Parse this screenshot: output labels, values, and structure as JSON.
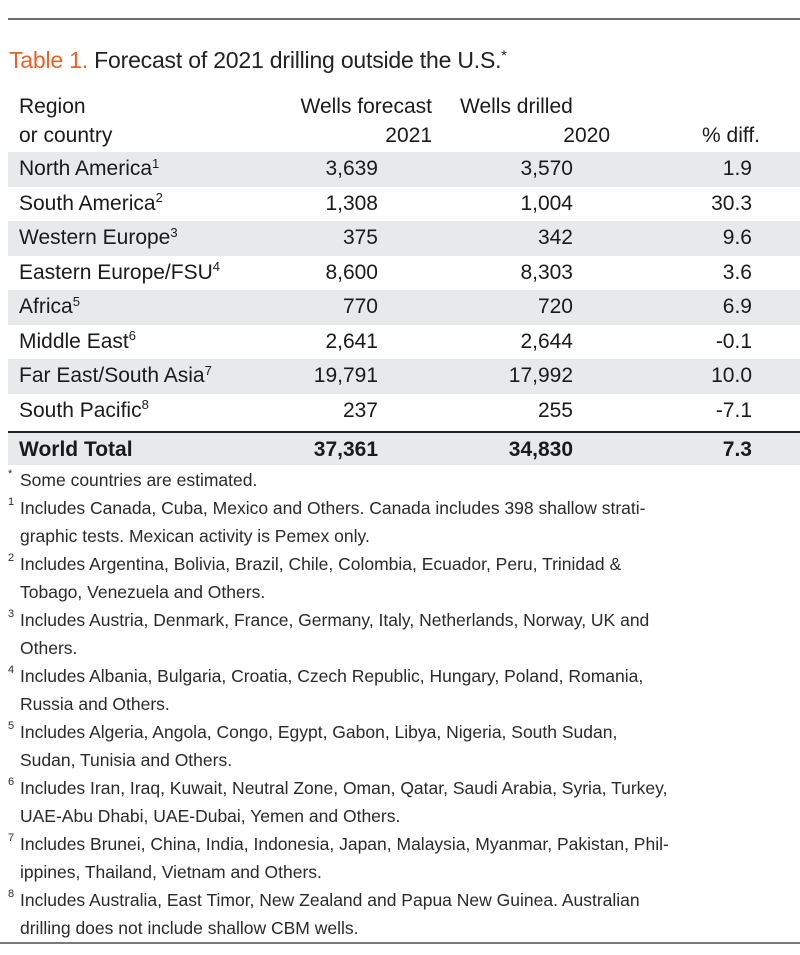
{
  "title": {
    "label": "Table 1.",
    "text": "Forecast of 2021 drilling outside the U.S.",
    "marker": "*"
  },
  "columns": {
    "region": [
      "Region",
      "or country"
    ],
    "forecast": [
      "Wells forecast",
      "2021"
    ],
    "drilled": [
      "Wells drilled",
      "2020"
    ],
    "pct": "% diff."
  },
  "rows": [
    {
      "region": "North America",
      "note": "1",
      "forecast": "3,639",
      "drilled": "3,570",
      "pct": "1.9"
    },
    {
      "region": "South America",
      "note": "2",
      "forecast": "1,308",
      "drilled": "1,004",
      "pct": "30.3"
    },
    {
      "region": "Western Europe",
      "note": "3",
      "forecast": "375",
      "drilled": "342",
      "pct": "9.6"
    },
    {
      "region": "Eastern Europe/FSU",
      "note": "4",
      "forecast": "8,600",
      "drilled": "8,303",
      "pct": "3.6"
    },
    {
      "region": "Africa",
      "note": "5",
      "forecast": "770",
      "drilled": "720",
      "pct": "6.9"
    },
    {
      "region": "Middle East",
      "note": "6",
      "forecast": "2,641",
      "drilled": "2,644",
      "pct": "-0.1"
    },
    {
      "region": "Far East/South Asia",
      "note": "7",
      "forecast": "19,791",
      "drilled": "17,992",
      "pct": "10.0"
    },
    {
      "region": "South Pacific",
      "note": "8",
      "forecast": "237",
      "drilled": "255",
      "pct": "-7.1"
    }
  ],
  "total": {
    "region": "World Total",
    "forecast": "37,361",
    "drilled": "34,830",
    "pct": "7.3"
  },
  "footnotes": [
    {
      "mark": "*",
      "text": "Some countries are estimated."
    },
    {
      "mark": "1",
      "text": "Includes Canada, Cuba, Mexico and Others. Canada includes 398 shallow strati-graphic tests. Mexican activity is Pemex only.",
      "lines": [
        "Includes Canada, Cuba, Mexico and Others. Canada includes 398 shallow strati-",
        "graphic tests. Mexican activity is Pemex only."
      ]
    },
    {
      "mark": "2",
      "lines": [
        "Includes Argentina, Bolivia, Brazil, Chile, Colombia, Ecuador, Peru, Trinidad &",
        "Tobago, Venezuela and Others."
      ]
    },
    {
      "mark": "3",
      "lines": [
        "Includes Austria, Denmark, France, Germany, Italy, Netherlands, Norway, UK and",
        "Others."
      ]
    },
    {
      "mark": "4",
      "lines": [
        "Includes Albania, Bulgaria, Croatia, Czech Republic, Hungary, Poland, Romania,",
        "Russia and Others."
      ]
    },
    {
      "mark": "5",
      "lines": [
        "Includes Algeria, Angola, Congo, Egypt, Gabon, Libya, Nigeria, South Sudan,",
        "Sudan, Tunisia and Others."
      ]
    },
    {
      "mark": "6",
      "lines": [
        "Includes Iran, Iraq, Kuwait, Neutral Zone, Oman, Qatar, Saudi Arabia, Syria, Turkey,",
        "UAE-Abu Dhabi, UAE-Dubai, Yemen and Others."
      ]
    },
    {
      "mark": "7",
      "lines": [
        "Includes Brunei, China, India, Indonesia, Japan, Malaysia, Myanmar, Pakistan, Phil-",
        "ippines, Thailand, Vietnam and Others."
      ]
    },
    {
      "mark": "8",
      "lines": [
        "Includes Australia, East Timor, New Zealand and Papua New Guinea. Australian",
        "drilling does not include shallow CBM wells."
      ]
    }
  ],
  "colors": {
    "accent": "#e8622a",
    "row_shade": "#e8e9eb",
    "rule": "#6e6e6e"
  }
}
